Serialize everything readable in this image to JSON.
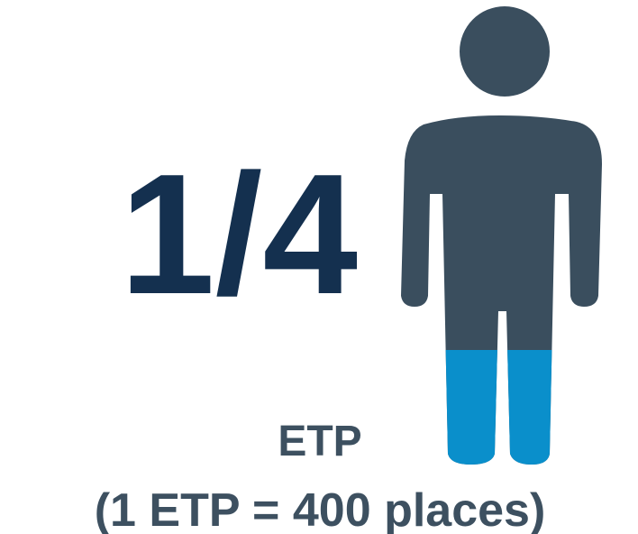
{
  "fraction": "1/4",
  "label": "ETP",
  "note": "(1 ETP = 400 places)"
}
